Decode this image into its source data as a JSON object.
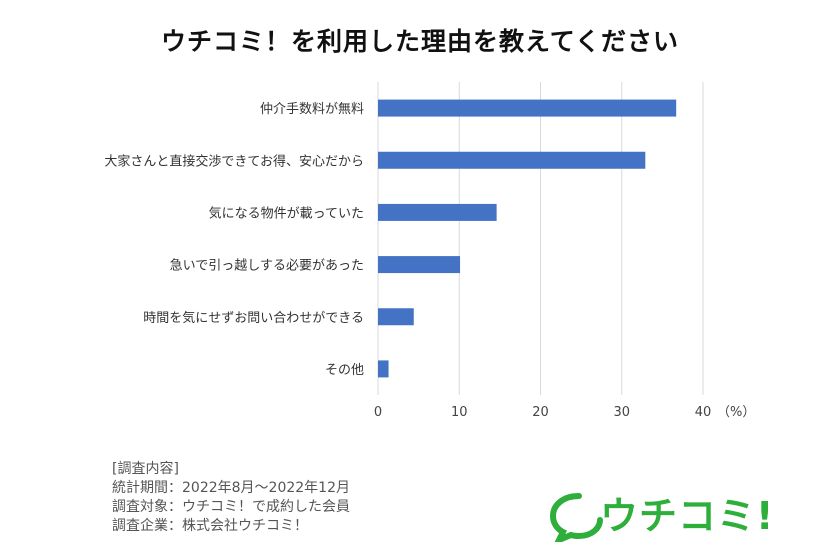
{
  "chart_data": {
    "type": "bar",
    "orientation": "horizontal",
    "title": "ウチコミ！を利用した理由を教えてください",
    "categories": [
      "仲介手数料が無料",
      "大家さんと直接交渉できてお得、安心だから",
      "気になる物件が載っていた",
      "急いで引っ越しする必要があった",
      "時間を気にせずお問い合わせができる",
      "その他"
    ],
    "values": [
      36.7,
      32.9,
      14.6,
      10.1,
      4.4,
      1.3
    ],
    "xlim": [
      0,
      40
    ],
    "xticks": [
      0,
      10,
      20,
      30,
      40
    ],
    "unit_label": "（%）",
    "grid": "vertical",
    "legend": "none",
    "bar_color": "#4472c4"
  },
  "notes": {
    "heading": "[調査内容]",
    "period": "統計期間：2022年8月〜2022年12月",
    "target": "調査対象：ウチコミ！で成約した会員",
    "company": "調査企業：株式会社ウチコミ！"
  },
  "logo": {
    "text": "ウチコミ!",
    "color": "#2eae3a"
  }
}
